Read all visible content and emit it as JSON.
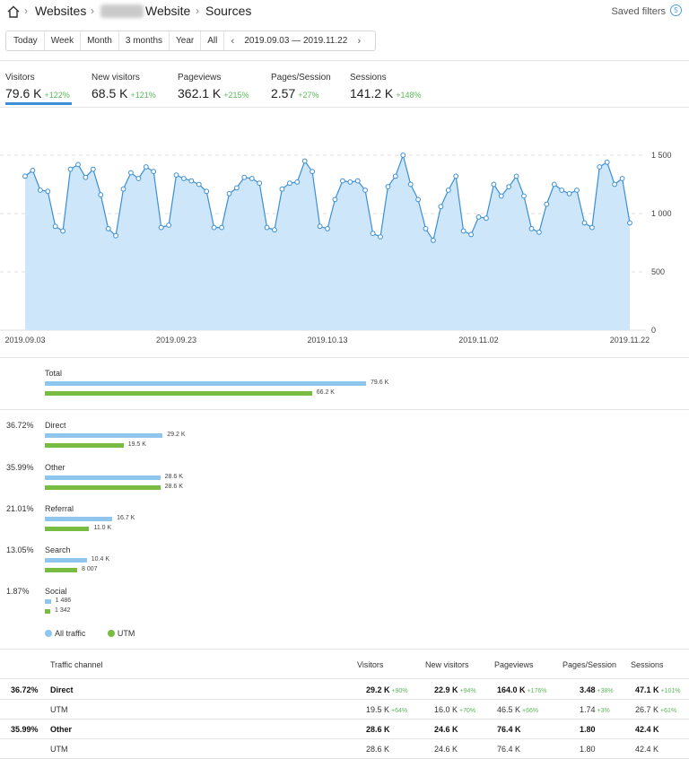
{
  "breadcrumb": {
    "root": "Websites",
    "site": "Website",
    "page": "Sources"
  },
  "saved_filters": "Saved filters",
  "periods": [
    "Today",
    "Week",
    "Month",
    "3 months",
    "Year",
    "All"
  ],
  "date_range": "2019.09.03 — 2019.11.22",
  "metrics": [
    {
      "label": "Visitors",
      "value": "79.6 K",
      "change": "+122%"
    },
    {
      "label": "New visitors",
      "value": "68.5 K",
      "change": "+121%"
    },
    {
      "label": "Pageviews",
      "value": "362.1 K",
      "change": "+215%"
    },
    {
      "label": "Pages/Session",
      "value": "2.57",
      "change": "+27%"
    },
    {
      "label": "Sessions",
      "value": "141.2 K",
      "change": "+148%"
    }
  ],
  "chart_data": {
    "type": "area",
    "x_start": "2019.09.03",
    "x_ticks": [
      "2019.09.03",
      "2019.09.23",
      "2019.10.13",
      "2019.11.02",
      "2019.11.22"
    ],
    "y_ticks": [
      "0",
      "500",
      "1 000",
      "1 500"
    ],
    "ylim": [
      0,
      1500
    ],
    "grid": true,
    "color": "#3b8fd4",
    "fill": "#cde6fa",
    "values": [
      1320,
      1370,
      1200,
      1190,
      890,
      850,
      1380,
      1420,
      1310,
      1380,
      1160,
      870,
      810,
      1210,
      1350,
      1300,
      1400,
      1360,
      880,
      900,
      1330,
      1300,
      1280,
      1250,
      1190,
      880,
      880,
      1170,
      1220,
      1310,
      1300,
      1260,
      880,
      860,
      1210,
      1260,
      1270,
      1450,
      1360,
      890,
      870,
      1120,
      1280,
      1270,
      1280,
      1200,
      830,
      800,
      1230,
      1320,
      1500,
      1250,
      1120,
      870,
      770,
      1060,
      1200,
      1320,
      850,
      820,
      970,
      960,
      1250,
      1150,
      1230,
      1320,
      1150,
      870,
      840,
      1080,
      1250,
      1200,
      1170,
      1200,
      920,
      880,
      1400,
      1440,
      1250,
      1300,
      920
    ]
  },
  "sources": {
    "total": {
      "label": "Total",
      "all": "79.6 K",
      "utm": "66.2 K",
      "all_value": 79600,
      "utm_value": 66200
    },
    "channels": [
      {
        "pct": "36.72%",
        "label": "Direct",
        "all": "29.2 K",
        "utm": "19.5 K",
        "all_value": 29200,
        "utm_value": 19500
      },
      {
        "pct": "35.99%",
        "label": "Other",
        "all": "28.6 K",
        "utm": "28.6 K",
        "all_value": 28600,
        "utm_value": 28600
      },
      {
        "pct": "21.01%",
        "label": "Referral",
        "all": "16.7 K",
        "utm": "11.0 K",
        "all_value": 16700,
        "utm_value": 11000
      },
      {
        "pct": "13.05%",
        "label": "Search",
        "all": "10.4 K",
        "utm": "8 007",
        "all_value": 10400,
        "utm_value": 8007
      },
      {
        "pct": "1.87%",
        "label": "Social",
        "all": "1 486",
        "utm": "1 342",
        "all_value": 1486,
        "utm_value": 1342
      }
    ],
    "colors": {
      "all": "#8ec6ee",
      "utm": "#78bd42"
    }
  },
  "legend": {
    "all": "All traffic",
    "utm": "UTM"
  },
  "table": {
    "headers": {
      "channel": "Traffic channel",
      "visitors": "Visitors",
      "new_visitors": "New visitors",
      "pageviews": "Pageviews",
      "pages_session": "Pages/Session",
      "sessions": "Sessions"
    },
    "rows": [
      {
        "pct": "36.72%",
        "channel": "Direct",
        "visitors": "29.2 K",
        "visitors_chg": "+90%",
        "new_visitors": "22.9 K",
        "new_visitors_chg": "+94%",
        "pageviews": "164.0 K",
        "pageviews_chg": "+176%",
        "pages_session": "3.48",
        "pages_session_chg": "+38%",
        "sessions": "47.1 K",
        "sessions_chg": "+101%"
      },
      {
        "pct": "",
        "channel": "UTM",
        "visitors": "19.5 K",
        "visitors_chg": "+64%",
        "new_visitors": "16.0 K",
        "new_visitors_chg": "+70%",
        "pageviews": "46.5 K",
        "pageviews_chg": "+66%",
        "pages_session": "1.74",
        "pages_session_chg": "+3%",
        "sessions": "26.7 K",
        "sessions_chg": "+61%"
      },
      {
        "pct": "35.99%",
        "channel": "Other",
        "visitors": "28.6 K",
        "visitors_chg": "",
        "new_visitors": "24.6 K",
        "new_visitors_chg": "",
        "pageviews": "76.4 K",
        "pageviews_chg": "",
        "pages_session": "1.80",
        "pages_session_chg": "",
        "sessions": "42.4 K",
        "sessions_chg": ""
      },
      {
        "pct": "",
        "channel": "UTM",
        "visitors": "28.6 K",
        "visitors_chg": "",
        "new_visitors": "24.6 K",
        "new_visitors_chg": "",
        "pageviews": "76.4 K",
        "pageviews_chg": "",
        "pages_session": "1.80",
        "pages_session_chg": "",
        "sessions": "42.4 K",
        "sessions_chg": ""
      }
    ]
  }
}
